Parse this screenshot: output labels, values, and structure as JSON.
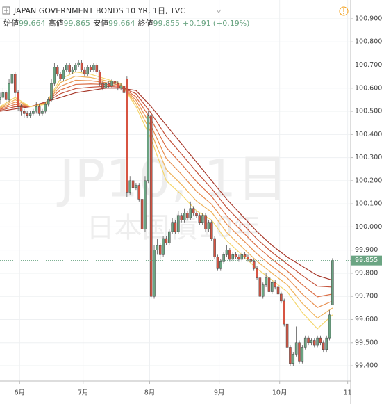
{
  "chart_data": {
    "type": "candlestick",
    "title": "JAPAN GOVERNMENT BONDS 10 YR, 1日, TVC",
    "ohlc_header": [
      {
        "name": "始値",
        "value": 99.664
      },
      {
        "name": "高値",
        "value": 99.865
      },
      {
        "name": "安値",
        "value": 99.664
      },
      {
        "name": "終値",
        "value": 99.855
      }
    ],
    "change": {
      "value": 0.191,
      "label": "+0.191"
    },
    "change_pct": {
      "value": 0.19,
      "label": "(+0.19%)"
    },
    "watermark": [
      "JP10, 1日",
      "日本国債10年"
    ],
    "up_color": "#6ba583",
    "down_color": "#d75442",
    "last_price": {
      "value": 99.855,
      "label": "99.855"
    },
    "last_price_color": "#6ba583",
    "grid": true,
    "xlim": [
      0,
      116
    ],
    "xticks": [
      {
        "value": 6.5,
        "label": "6月"
      },
      {
        "value": 27.5,
        "label": "7月"
      },
      {
        "value": 49.5,
        "label": "8月"
      },
      {
        "value": 72.5,
        "label": "9月"
      },
      {
        "value": 92.5,
        "label": "10月"
      },
      {
        "value": 115,
        "label": "11"
      }
    ],
    "ylim": [
      99.334,
      100.981
    ],
    "yticks": [
      {
        "value": 99.4,
        "label": "99.400"
      },
      {
        "value": 99.5,
        "label": "99.500"
      },
      {
        "value": 99.6,
        "label": "99.600"
      },
      {
        "value": 99.7,
        "label": "99.700"
      },
      {
        "value": 99.8,
        "label": "99.800"
      },
      {
        "value": 99.9,
        "label": "99.900"
      },
      {
        "value": 100.0,
        "label": "100.000"
      },
      {
        "value": 100.1,
        "label": "100.100"
      },
      {
        "value": 100.2,
        "label": "100.200"
      },
      {
        "value": 100.3,
        "label": "100.300"
      },
      {
        "value": 100.4,
        "label": "100.400"
      },
      {
        "value": 100.5,
        "label": "100.500"
      },
      {
        "value": 100.6,
        "label": "100.600"
      },
      {
        "value": 100.7,
        "label": "100.700"
      },
      {
        "value": 100.8,
        "label": "100.800"
      },
      {
        "value": 100.9,
        "label": "100.900"
      }
    ],
    "x": [
      0,
      1,
      2,
      3,
      4,
      5,
      6,
      7,
      8,
      9,
      10,
      11,
      12,
      13,
      14,
      15,
      16,
      17,
      18,
      19,
      20,
      21,
      22,
      23,
      24,
      25,
      26,
      27,
      28,
      29,
      30,
      31,
      32,
      33,
      34,
      35,
      36,
      37,
      38,
      39,
      40,
      41,
      42,
      43,
      44,
      45,
      46,
      47,
      48,
      49,
      50,
      51,
      52,
      53,
      54,
      55,
      56,
      57,
      58,
      59,
      60,
      61,
      62,
      63,
      64,
      65,
      66,
      67,
      68,
      69,
      70,
      71,
      72,
      73,
      74,
      75,
      76,
      77,
      78,
      79,
      80,
      81,
      82,
      83,
      84,
      85,
      86,
      87,
      88,
      89,
      90,
      91,
      92,
      93,
      94,
      95,
      96,
      97,
      98,
      99,
      100,
      101,
      102,
      103,
      104,
      105,
      106,
      107,
      108,
      109,
      110
    ],
    "ohlc": [
      [
        100.55,
        100.58,
        100.53,
        100.56
      ],
      [
        100.56,
        100.6,
        100.55,
        100.58
      ],
      [
        100.58,
        100.59,
        100.53,
        100.55
      ],
      [
        100.55,
        100.64,
        100.54,
        100.62
      ],
      [
        100.62,
        100.73,
        100.61,
        100.66
      ],
      [
        100.66,
        100.67,
        100.56,
        100.58
      ],
      [
        100.58,
        100.59,
        100.5,
        100.52
      ],
      [
        100.52,
        100.53,
        100.48,
        100.5
      ],
      [
        100.5,
        100.51,
        100.47,
        100.49
      ],
      [
        100.49,
        100.5,
        100.47,
        100.48
      ],
      [
        100.48,
        100.5,
        100.47,
        100.49
      ],
      [
        100.49,
        100.51,
        100.48,
        100.5
      ],
      [
        100.5,
        100.54,
        100.49,
        100.52
      ],
      [
        100.52,
        100.53,
        100.48,
        100.49
      ],
      [
        100.49,
        100.51,
        100.48,
        100.5
      ],
      [
        100.5,
        100.54,
        100.49,
        100.53
      ],
      [
        100.53,
        100.56,
        100.52,
        100.55
      ],
      [
        100.55,
        100.64,
        100.54,
        100.62
      ],
      [
        100.62,
        100.71,
        100.61,
        100.69
      ],
      [
        100.69,
        100.7,
        100.65,
        100.66
      ],
      [
        100.66,
        100.67,
        100.63,
        100.64
      ],
      [
        100.64,
        100.69,
        100.63,
        100.68
      ],
      [
        100.68,
        100.71,
        100.67,
        100.7
      ],
      [
        100.7,
        100.71,
        100.66,
        100.67
      ],
      [
        100.67,
        100.69,
        100.66,
        100.68
      ],
      [
        100.68,
        100.71,
        100.67,
        100.7
      ],
      [
        100.7,
        100.72,
        100.69,
        100.71
      ],
      [
        100.71,
        100.72,
        100.67,
        100.68
      ],
      [
        100.68,
        100.69,
        100.65,
        100.66
      ],
      [
        100.66,
        100.7,
        100.65,
        100.69
      ],
      [
        100.69,
        100.7,
        100.67,
        100.68
      ],
      [
        100.68,
        100.71,
        100.67,
        100.7
      ],
      [
        100.7,
        100.71,
        100.66,
        100.67
      ],
      [
        100.67,
        100.68,
        100.61,
        100.62
      ],
      [
        100.62,
        100.63,
        100.59,
        100.6
      ],
      [
        100.6,
        100.63,
        100.59,
        100.62
      ],
      [
        100.62,
        100.63,
        100.6,
        100.61
      ],
      [
        100.61,
        100.64,
        100.6,
        100.63
      ],
      [
        100.63,
        100.64,
        100.61,
        100.62
      ],
      [
        100.62,
        100.63,
        100.59,
        100.6
      ],
      [
        100.6,
        100.62,
        100.59,
        100.61
      ],
      [
        100.61,
        100.62,
        100.57,
        100.58
      ],
      [
        100.64,
        100.65,
        100.13,
        100.15
      ],
      [
        100.15,
        100.22,
        100.14,
        100.2
      ],
      [
        100.2,
        100.21,
        100.16,
        100.17
      ],
      [
        100.17,
        100.19,
        100.16,
        100.18
      ],
      [
        100.18,
        100.19,
        100.11,
        100.12
      ],
      [
        100.12,
        100.13,
        99.98,
        99.99
      ],
      [
        99.99,
        100.22,
        99.98,
        100.2
      ],
      [
        100.2,
        100.5,
        100.19,
        100.48
      ],
      [
        100.48,
        100.5,
        99.69,
        99.7
      ],
      [
        99.7,
        99.92,
        99.69,
        99.9
      ],
      [
        99.9,
        99.95,
        99.88,
        99.92
      ],
      [
        99.92,
        99.93,
        99.86,
        99.88
      ],
      [
        99.88,
        99.96,
        99.87,
        99.95
      ],
      [
        99.95,
        99.96,
        99.92,
        99.93
      ],
      [
        99.93,
        99.99,
        99.92,
        99.98
      ],
      [
        99.98,
        100.04,
        99.97,
        100.02
      ],
      [
        100.02,
        100.03,
        99.97,
        99.98
      ],
      [
        99.98,
        100.07,
        99.97,
        100.05
      ],
      [
        100.05,
        100.06,
        100.02,
        100.03
      ],
      [
        100.03,
        100.08,
        100.02,
        100.06
      ],
      [
        100.06,
        100.07,
        100.03,
        100.04
      ],
      [
        100.04,
        100.11,
        100.03,
        100.08
      ],
      [
        100.08,
        100.09,
        100.05,
        100.06
      ],
      [
        100.06,
        100.07,
        100.04,
        100.05
      ],
      [
        100.05,
        100.06,
        100.01,
        100.02
      ],
      [
        100.02,
        100.06,
        100.01,
        100.05
      ],
      [
        100.05,
        100.06,
        99.98,
        99.99
      ],
      [
        99.99,
        100.03,
        99.98,
        100.02
      ],
      [
        100.02,
        100.03,
        99.94,
        99.95
      ],
      [
        99.95,
        99.96,
        99.86,
        99.87
      ],
      [
        99.87,
        99.88,
        99.81,
        99.82
      ],
      [
        99.82,
        99.86,
        99.81,
        99.85
      ],
      [
        99.85,
        99.89,
        99.84,
        99.88
      ],
      [
        99.88,
        99.92,
        99.87,
        99.9
      ],
      [
        99.9,
        99.91,
        99.85,
        99.86
      ],
      [
        99.86,
        99.89,
        99.85,
        99.88
      ],
      [
        99.88,
        99.89,
        99.86,
        99.87
      ],
      [
        99.87,
        99.88,
        99.85,
        99.86
      ],
      [
        99.86,
        99.89,
        99.85,
        99.88
      ],
      [
        99.88,
        99.89,
        99.86,
        99.87
      ],
      [
        99.87,
        99.88,
        99.85,
        99.86
      ],
      [
        99.86,
        99.87,
        99.84,
        99.85
      ],
      [
        99.85,
        99.86,
        99.81,
        99.82
      ],
      [
        99.82,
        99.83,
        99.77,
        99.78
      ],
      [
        99.78,
        99.79,
        99.69,
        99.7
      ],
      [
        99.7,
        99.76,
        99.69,
        99.75
      ],
      [
        99.75,
        99.8,
        99.74,
        99.78
      ],
      [
        99.78,
        99.79,
        99.71,
        99.72
      ],
      [
        99.72,
        99.77,
        99.71,
        99.76
      ],
      [
        99.76,
        99.77,
        99.73,
        99.74
      ],
      [
        99.74,
        99.75,
        99.7,
        99.71
      ],
      [
        99.71,
        99.72,
        99.67,
        99.68
      ],
      [
        99.68,
        99.69,
        99.57,
        99.58
      ],
      [
        99.58,
        99.59,
        99.47,
        99.48
      ],
      [
        99.48,
        99.49,
        99.4,
        99.41
      ],
      [
        99.41,
        99.46,
        99.4,
        99.45
      ],
      [
        99.45,
        99.57,
        99.44,
        99.5
      ],
      [
        99.5,
        99.51,
        99.41,
        99.42
      ],
      [
        99.42,
        99.49,
        99.41,
        99.48
      ],
      [
        99.48,
        99.53,
        99.47,
        99.52
      ],
      [
        99.52,
        99.53,
        99.49,
        99.5
      ],
      [
        99.5,
        99.52,
        99.49,
        99.51
      ],
      [
        99.51,
        99.52,
        99.48,
        99.49
      ],
      [
        99.49,
        99.53,
        99.48,
        99.52
      ],
      [
        99.52,
        99.53,
        99.49,
        99.5
      ],
      [
        99.5,
        99.51,
        99.46,
        99.47
      ],
      [
        99.47,
        99.53,
        99.46,
        99.52
      ],
      [
        99.52,
        99.64,
        99.51,
        99.62
      ],
      [
        99.664,
        99.865,
        99.664,
        99.855
      ]
    ],
    "series": [
      {
        "color": "#a83a2c",
        "x": [
          0,
          5,
          10,
          15,
          20,
          25,
          30,
          35,
          40,
          45,
          50,
          55,
          60,
          65,
          70,
          75,
          80,
          85,
          90,
          95,
          100,
          105,
          110
        ],
        "values": [
          100.5,
          100.51,
          100.52,
          100.54,
          100.56,
          100.58,
          100.59,
          100.6,
          100.6,
          100.59,
          100.52,
          100.44,
          100.36,
          100.28,
          100.2,
          100.12,
          100.05,
          99.98,
          99.92,
          99.87,
          99.83,
          99.79,
          99.77
        ]
      },
      {
        "color": "#c4523b",
        "x": [
          0,
          5,
          10,
          15,
          20,
          25,
          30,
          35,
          40,
          45,
          50,
          55,
          60,
          65,
          70,
          75,
          80,
          85,
          90,
          95,
          100,
          105,
          110
        ],
        "values": [
          100.504,
          100.52,
          100.52,
          100.538,
          100.576,
          100.598,
          100.604,
          100.608,
          100.604,
          100.576,
          100.492,
          100.392,
          100.316,
          100.238,
          100.166,
          100.084,
          100.016,
          99.948,
          99.89,
          99.84,
          99.79,
          99.744,
          99.74
        ]
      },
      {
        "color": "#db6e45",
        "x": [
          0,
          5,
          10,
          15,
          20,
          25,
          30,
          35,
          40,
          45,
          50,
          55,
          60,
          65,
          70,
          75,
          80,
          85,
          90,
          95,
          100,
          105,
          110
        ],
        "values": [
          100.508,
          100.53,
          100.52,
          100.536,
          100.592,
          100.616,
          100.618,
          100.616,
          100.608,
          100.562,
          100.464,
          100.344,
          100.272,
          100.196,
          100.132,
          100.048,
          99.982,
          99.916,
          99.86,
          99.81,
          99.75,
          99.698,
          99.71
        ]
      },
      {
        "color": "#e88e4e",
        "x": [
          0,
          5,
          10,
          15,
          20,
          25,
          30,
          35,
          40,
          45,
          50,
          55,
          60,
          65,
          70,
          75,
          80,
          85,
          90,
          95,
          100,
          105,
          110
        ],
        "values": [
          100.512,
          100.54,
          100.52,
          100.534,
          100.608,
          100.634,
          100.632,
          100.624,
          100.612,
          100.548,
          100.436,
          100.296,
          100.228,
          100.154,
          100.098,
          100.012,
          99.948,
          99.884,
          99.83,
          99.78,
          99.71,
          99.652,
          99.68
        ]
      },
      {
        "color": "#f0b25a",
        "x": [
          0,
          5,
          10,
          15,
          20,
          25,
          30,
          35,
          40,
          45,
          50,
          55,
          60,
          65,
          70,
          75,
          80,
          85,
          90,
          95,
          100,
          105,
          110
        ],
        "values": [
          100.516,
          100.55,
          100.52,
          100.532,
          100.624,
          100.652,
          100.646,
          100.632,
          100.616,
          100.534,
          100.408,
          100.248,
          100.184,
          100.112,
          100.064,
          99.976,
          99.914,
          99.852,
          99.8,
          99.75,
          99.67,
          99.606,
          99.65
        ]
      },
      {
        "color": "#f5d66c",
        "x": [
          0,
          5,
          10,
          15,
          20,
          25,
          30,
          35,
          40,
          45,
          50,
          55,
          60,
          65,
          70,
          75,
          80,
          85,
          90,
          95,
          100,
          105,
          110
        ],
        "values": [
          100.52,
          100.56,
          100.52,
          100.53,
          100.64,
          100.67,
          100.66,
          100.64,
          100.62,
          100.52,
          100.38,
          100.2,
          100.14,
          100.07,
          100.03,
          99.94,
          99.88,
          99.82,
          99.77,
          99.72,
          99.63,
          99.56,
          99.62
        ]
      }
    ]
  }
}
